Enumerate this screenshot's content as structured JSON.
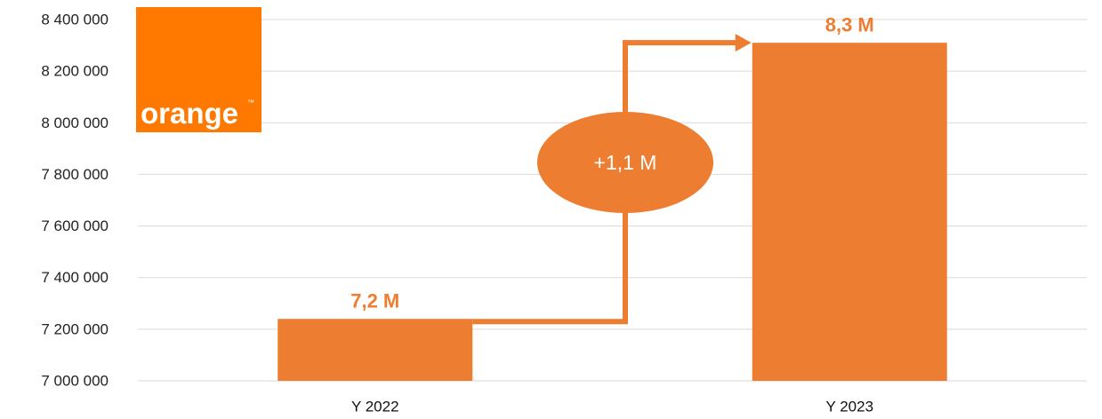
{
  "colors": {
    "bar": "#ED7D31",
    "label": "#ED7D31",
    "grid": "#D9D9D9",
    "logo": "#FF7900"
  },
  "logo": {
    "text": "orange",
    "tm": "™"
  },
  "chart_data": {
    "type": "bar",
    "categories": [
      "Y 2022",
      "Y 2023"
    ],
    "values": [
      7240000,
      8310000
    ],
    "data_labels": [
      "7,2 M",
      "8,3 M"
    ],
    "ylim": [
      7000000,
      8400000
    ],
    "y_ticks": [
      7000000,
      7200000,
      7400000,
      7600000,
      7800000,
      8000000,
      8200000,
      8400000
    ],
    "y_tick_labels": [
      "7 000 000",
      "7 200 000",
      "7 400 000",
      "7 600 000",
      "7 800 000",
      "8 000 000",
      "8 200 000",
      "8 400 000"
    ],
    "grid": true,
    "annotation": {
      "text": "+1,1 M",
      "type": "arrow-with-ellipse",
      "from": "Y 2022",
      "to": "Y 2023"
    }
  }
}
